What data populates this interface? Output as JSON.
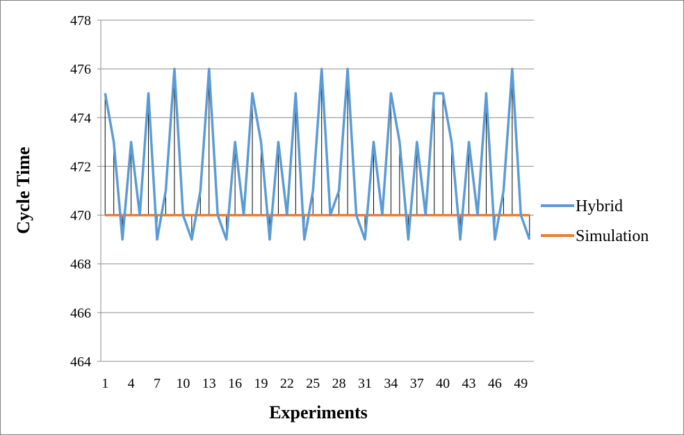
{
  "chart_data": {
    "type": "line",
    "title": "",
    "xlabel": "Experiments",
    "ylabel": "Cycle Time",
    "ylim": [
      464,
      478
    ],
    "ytick_step": 2,
    "yticks": [
      "464",
      "466",
      "468",
      "470",
      "472",
      "474",
      "476",
      "478"
    ],
    "x": [
      1,
      2,
      3,
      4,
      5,
      6,
      7,
      8,
      9,
      10,
      11,
      12,
      13,
      14,
      15,
      16,
      17,
      18,
      19,
      20,
      21,
      22,
      23,
      24,
      25,
      26,
      27,
      28,
      29,
      30,
      31,
      32,
      33,
      34,
      35,
      36,
      37,
      38,
      39,
      40,
      41,
      42,
      43,
      44,
      45,
      46,
      47,
      48,
      49,
      50
    ],
    "xtick_labels": [
      "1",
      "4",
      "7",
      "10",
      "13",
      "16",
      "19",
      "22",
      "25",
      "28",
      "31",
      "34",
      "37",
      "40",
      "43",
      "46",
      "49"
    ],
    "grid": "horizontal",
    "legend_position": "right",
    "drop_lines": true,
    "series": [
      {
        "name": "Hybrid",
        "color": "#5b9bd5",
        "values": [
          475,
          473,
          469,
          473,
          470,
          475,
          469,
          471,
          476,
          470,
          469,
          471,
          476,
          470,
          469,
          473,
          470,
          475,
          473,
          469,
          473,
          470,
          475,
          469,
          471,
          476,
          470,
          471,
          476,
          470,
          469,
          473,
          470,
          475,
          473,
          469,
          473,
          470,
          475,
          475,
          473,
          469,
          473,
          470,
          475,
          469,
          471,
          476,
          470,
          469
        ]
      },
      {
        "name": "Simulation",
        "color": "#ed7d31",
        "values": [
          470,
          470,
          470,
          470,
          470,
          470,
          470,
          470,
          470,
          470,
          470,
          470,
          470,
          470,
          470,
          470,
          470,
          470,
          470,
          470,
          470,
          470,
          470,
          470,
          470,
          470,
          470,
          470,
          470,
          470,
          470,
          470,
          470,
          470,
          470,
          470,
          470,
          470,
          470,
          470,
          470,
          470,
          470,
          470,
          470,
          470,
          470,
          470,
          470,
          470
        ]
      }
    ]
  }
}
